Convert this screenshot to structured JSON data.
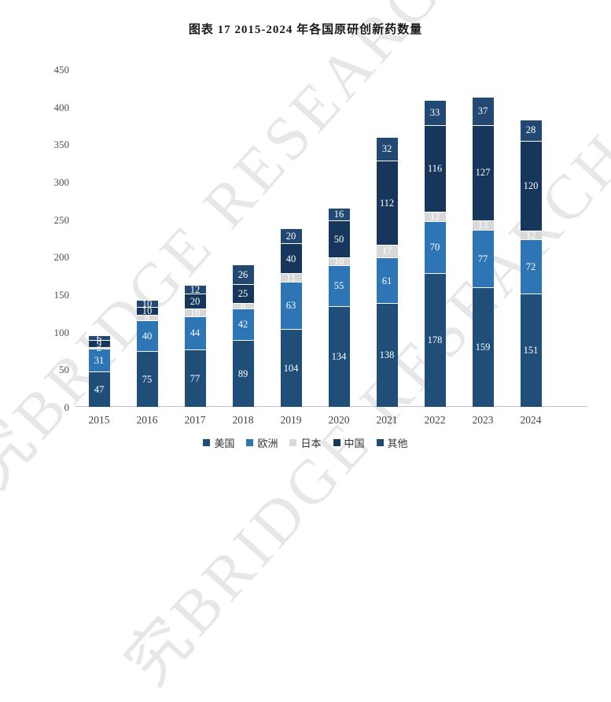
{
  "title": "图表 17 2015-2024 年各国原研创新药数量",
  "watermark": {
    "text": "究BRIDGE RESEARCH"
  },
  "chart_data": {
    "type": "bar",
    "stacked": true,
    "title": "图表 17 2015-2024 年各国原研创新药数量",
    "categories": [
      "2015",
      "2016",
      "2017",
      "2018",
      "2019",
      "2020",
      "2021",
      "2022",
      "2023",
      "2024"
    ],
    "series": [
      {
        "name": "美国",
        "color": "#1F4E79",
        "values": [
          47,
          75,
          77,
          89,
          104,
          134,
          138,
          178,
          159,
          151
        ]
      },
      {
        "name": "欧洲",
        "color": "#2E75B6",
        "values": [
          31,
          40,
          44,
          42,
          63,
          55,
          61,
          70,
          77,
          72
        ]
      },
      {
        "name": "日本",
        "color": "#D8D8D8",
        "values": [
          2,
          8,
          10,
          8,
          11,
          10,
          17,
          12,
          13,
          12
        ]
      },
      {
        "name": "中国",
        "color": "#16365C",
        "values": [
          9,
          10,
          20,
          25,
          40,
          50,
          112,
          116,
          127,
          120
        ]
      },
      {
        "name": "其他",
        "color": "#214973",
        "values": [
          6,
          10,
          12,
          26,
          20,
          16,
          32,
          33,
          37,
          28
        ]
      }
    ],
    "xlabel": "",
    "ylabel": "",
    "ylim": [
      0,
      450
    ],
    "yticks": [
      0,
      50,
      100,
      150,
      200,
      250,
      300,
      350,
      400,
      450
    ],
    "grid": false,
    "legend_position": "bottom",
    "value_labels": "inside-white"
  }
}
